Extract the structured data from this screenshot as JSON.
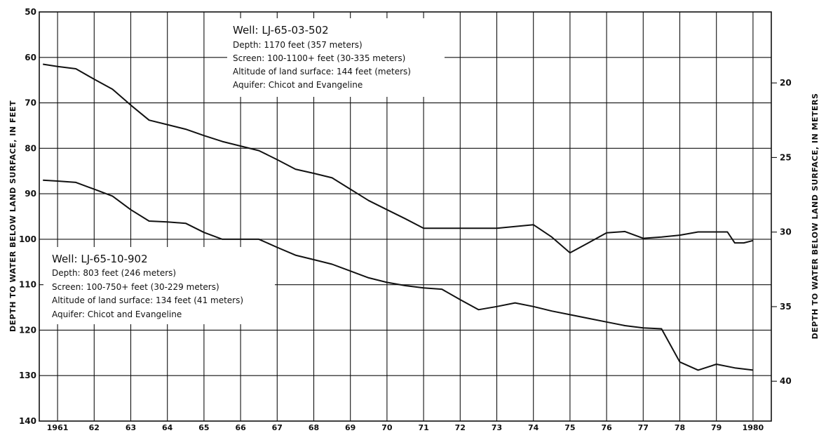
{
  "chart_data": {
    "type": "line",
    "ylabel_left": "DEPTH TO WATER BELOW LAND SURFACE, IN FEET",
    "ylabel_right": "DEPTH TO WATER BELOW LAND SURFACE, IN METERS",
    "x_tick_labels": [
      "1961",
      "62",
      "63",
      "64",
      "65",
      "66",
      "67",
      "68",
      "69",
      "70",
      "71",
      "72",
      "73",
      "74",
      "75",
      "76",
      "77",
      "78",
      "79",
      "1980"
    ],
    "xlim": [
      1960.5,
      1980.5
    ],
    "ylim_feet": [
      50,
      140
    ],
    "y_ticks_feet": [
      50,
      60,
      70,
      80,
      90,
      100,
      110,
      120,
      130,
      140
    ],
    "y_ticks_meters": [
      20,
      25,
      30,
      35,
      40
    ],
    "grid": true,
    "series": [
      {
        "name": "Well: LJ-65-03-502",
        "x": [
          1960.6,
          1961.0,
          1961.5,
          1962.0,
          1962.5,
          1963.0,
          1963.5,
          1964.0,
          1964.5,
          1965.0,
          1965.5,
          1966.0,
          1966.5,
          1967.0,
          1967.5,
          1968.0,
          1968.5,
          1969.0,
          1969.5,
          1970.0,
          1970.5,
          1971.0,
          1971.5,
          1972.0,
          1972.5,
          1973.0,
          1973.5,
          1974.0,
          1974.5,
          1975.0,
          1975.5,
          1976.0,
          1976.5,
          1977.0,
          1977.5,
          1978.0,
          1978.5,
          1979.0,
          1979.3,
          1979.5,
          1979.75,
          1980.0
        ],
        "y": [
          61.5,
          62.0,
          62.5,
          64.8,
          67.0,
          70.5,
          73.8,
          74.8,
          75.8,
          77.2,
          78.5,
          79.5,
          80.5,
          82.5,
          84.6,
          85.5,
          86.5,
          89.0,
          91.5,
          93.5,
          95.5,
          97.6,
          97.6,
          97.6,
          97.6,
          97.6,
          97.2,
          96.8,
          99.5,
          103.0,
          100.8,
          98.6,
          98.3,
          99.8,
          99.5,
          99.1,
          98.4,
          98.4,
          98.4,
          100.8,
          100.8,
          100.3
        ]
      },
      {
        "name": "Well: LJ-65-10-902",
        "x": [
          1960.6,
          1961.0,
          1961.5,
          1962.0,
          1962.5,
          1963.0,
          1963.5,
          1964.0,
          1964.5,
          1965.0,
          1965.5,
          1966.0,
          1966.5,
          1967.0,
          1967.5,
          1968.0,
          1968.5,
          1969.0,
          1969.5,
          1970.0,
          1970.5,
          1971.0,
          1971.5,
          1972.0,
          1972.5,
          1973.0,
          1973.5,
          1974.0,
          1974.5,
          1975.0,
          1975.5,
          1976.0,
          1976.5,
          1977.0,
          1977.5,
          1978.0,
          1978.5,
          1979.0,
          1979.5,
          1980.0
        ],
        "y": [
          87.0,
          87.2,
          87.5,
          89.0,
          90.5,
          93.5,
          96.0,
          96.2,
          96.5,
          98.5,
          100.0,
          100.0,
          100.0,
          101.8,
          103.5,
          104.5,
          105.5,
          107.0,
          108.5,
          109.5,
          110.2,
          110.7,
          111.0,
          113.3,
          115.5,
          114.8,
          114.0,
          114.8,
          115.8,
          116.6,
          117.4,
          118.2,
          119.0,
          119.5,
          119.7,
          127.0,
          128.8,
          127.5,
          128.3,
          128.8
        ]
      }
    ],
    "annotations": [
      {
        "title": "Well: LJ-65-03-502",
        "lines": [
          "Depth: 1170 feet (357 meters)",
          "Screen: 100-1100+ feet (30-335 meters)",
          "Altitude of land surface: 144 feet (meters)",
          "Aquifer: Chicot and Evangeline"
        ]
      },
      {
        "title": "Well: LJ-65-10-902",
        "lines": [
          "Depth: 803 feet (246 meters)",
          "Screen: 100-750+ feet (30-229 meters)",
          "Altitude of land surface: 134 feet (41 meters)",
          "Aquifer: Chicot and Evangeline"
        ]
      }
    ],
    "colors": {
      "line": "#111111",
      "background": "#ffffff"
    }
  }
}
